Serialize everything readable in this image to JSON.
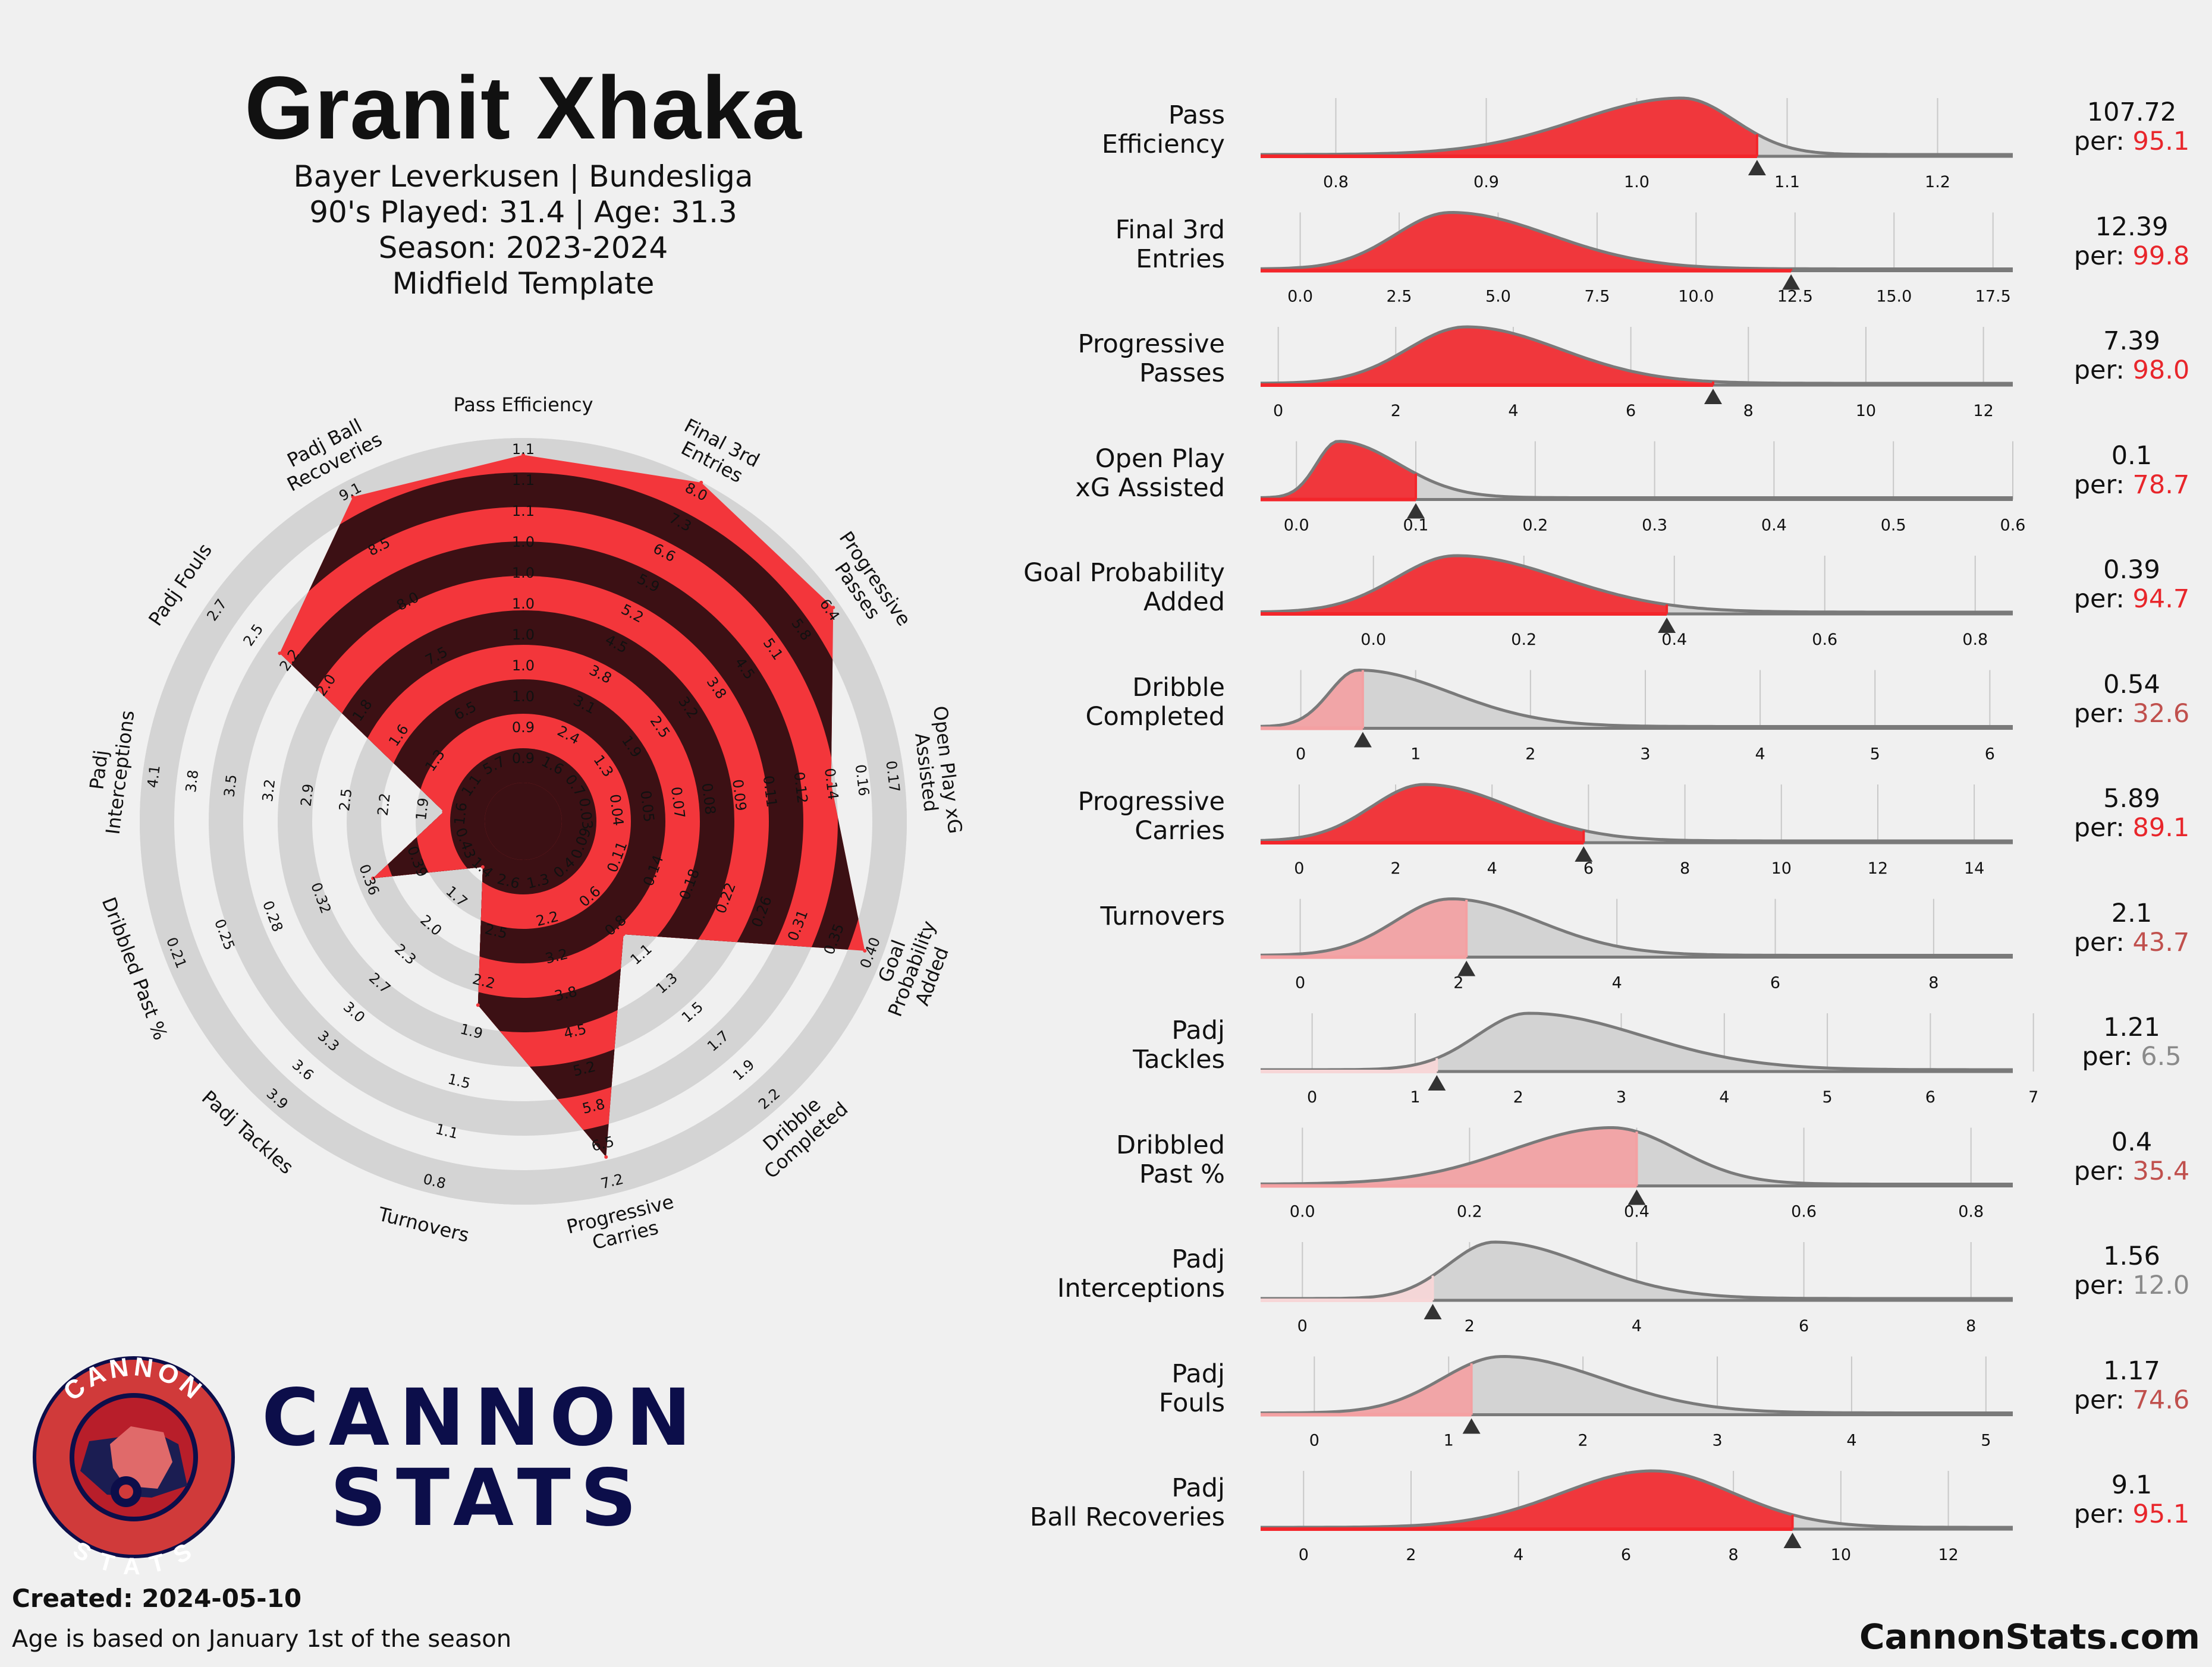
{
  "header": {
    "player": "Granit Xhaka",
    "team_line": "Bayer Leverkusen | Bundesliga",
    "played_line": "90's Played: 31.4 | Age: 31.3",
    "season_line": "Season: 2023-2024",
    "template_line": "Midfield Template"
  },
  "logo": {
    "ring_top": "CANNON",
    "ring_bottom": "STATS",
    "word1": "CANNON",
    "word2": "STATS"
  },
  "footer": {
    "created": "Created: 2024-05-10",
    "note": "Age is based on January 1st of the season",
    "site": "CannonStats.com"
  },
  "colors": {
    "red": "#f3363b",
    "dark": "#3c1014",
    "ring": "#d4d4d4",
    "grey": "#7a7a7a",
    "navy": "#0c0e4a"
  },
  "chart_data": [
    {
      "type": "radar",
      "categories": [
        "Pass Efficiency",
        "Final 3rd Entries",
        "Progressive Passes",
        "Open Play xG Assisted",
        "Goal Probability Added",
        "Dribble Completed",
        "Progressive Carries",
        "Turnovers",
        "Padj Tackles",
        "Dribbled Past %",
        "Padj Interceptions",
        "Padj Fouls",
        "Padj Ball Recoveries"
      ],
      "labels": [
        "Pass Efficiency",
        "Final 3rd\nEntries",
        "Progressive\nPasses",
        "Open Play xG\nAssisted",
        "Goal\nProbability\nAdded",
        "Dribble\nCompleted",
        "Progressive\nCarries",
        "Turnovers",
        "Padj Tackles",
        "Dribbled Past %",
        "Padj\nInterceptions",
        "Padj Fouls",
        "Padj Ball\nRecoveries"
      ],
      "percentiles": [
        95.1,
        99.8,
        98.0,
        78.7,
        94.7,
        32.6,
        89.1,
        43.7,
        6.5,
        35.4,
        12.0,
        74.6,
        95.1
      ],
      "ring_ticks": [
        [
          "0.9",
          "0.9",
          "1.0",
          "1.0",
          "1.0",
          "1.0",
          "1.0",
          "1.0",
          "1.1",
          "1.1",
          "1.1"
        ],
        [
          "1.6",
          "2.4",
          "3.1",
          "3.8",
          "4.5",
          "5.2",
          "5.9",
          "6.6",
          "7.3",
          "8.0"
        ],
        [
          "0.7",
          "1.3",
          "1.9",
          "2.5",
          "3.2",
          "3.8",
          "4.5",
          "5.1",
          "5.8",
          "6.4"
        ],
        [
          "0.03",
          "0.04",
          "0.05",
          "0.07",
          "0.08",
          "0.09",
          "0.11",
          "0.12",
          "0.14",
          "0.16",
          "0.17"
        ],
        [
          "0.09",
          "0.11",
          "0.14",
          "0.18",
          "0.22",
          "0.26",
          "0.31",
          "0.35",
          "0.40"
        ],
        [
          "0.4",
          "0.6",
          "0.8",
          "1.1",
          "1.3",
          "1.5",
          "1.7",
          "1.9",
          "2.2"
        ],
        [
          "1.3",
          "2.2",
          "3.2",
          "3.8",
          "4.5",
          "5.2",
          "5.8",
          "6.5",
          "7.2"
        ],
        [
          "2.6",
          "2.5",
          "2.2",
          "1.9",
          "1.5",
          "1.1",
          "0.8"
        ],
        [
          "1.4",
          "1.7",
          "2.0",
          "2.3",
          "2.7",
          "3.0",
          "3.3",
          "3.6",
          "3.9"
        ],
        [
          "0.43",
          "0.39",
          "0.36",
          "0.32",
          "0.28",
          "0.25",
          "0.21"
        ],
        [
          "1.6",
          "1.9",
          "2.2",
          "2.5",
          "2.9",
          "3.2",
          "3.5",
          "3.8",
          "4.1"
        ],
        [
          "1.1",
          "1.3",
          "1.6",
          "1.8",
          "2.0",
          "2.2",
          "2.5",
          "2.7"
        ],
        [
          "5.7",
          "6.5",
          "7.5",
          "8.0",
          "8.5",
          "9.1"
        ]
      ]
    },
    {
      "type": "density",
      "metrics": [
        {
          "label": "Pass\nEfficiency",
          "value": "107.72",
          "pct": "95.1",
          "xmin": 0.75,
          "xmax": 1.25,
          "ticks": [
            0.8,
            0.9,
            1.0,
            1.1,
            1.2
          ],
          "ticklabels": [
            "0.8",
            "0.9",
            "1.0",
            "1.1",
            "1.2"
          ],
          "marker": 1.08,
          "peak": 1.03,
          "sdl": 0.07,
          "sdr": 0.035
        },
        {
          "label": "Final 3rd\nEntries",
          "value": "12.39",
          "pct": "99.8",
          "xmin": -1,
          "xmax": 18,
          "ticks": [
            0,
            2.5,
            5,
            7.5,
            10,
            12.5,
            15,
            17.5
          ],
          "ticklabels": [
            "0.0",
            "2.5",
            "5.0",
            "7.5",
            "10.0",
            "12.5",
            "15.0",
            "17.5"
          ],
          "marker": 12.4,
          "peak": 3.8,
          "sdl": 1.4,
          "sdr": 2.5
        },
        {
          "label": "Progressive\nPasses",
          "value": "7.39",
          "pct": "98.0",
          "xmin": -0.3,
          "xmax": 12.5,
          "ticks": [
            0,
            2,
            4,
            6,
            8,
            10,
            12
          ],
          "ticklabels": [
            "0",
            "2",
            "4",
            "6",
            "8",
            "10",
            "12"
          ],
          "marker": 7.4,
          "peak": 3.2,
          "sdl": 1.0,
          "sdr": 1.6
        },
        {
          "label": "Open Play\nxG Assisted",
          "value": "0.1",
          "pct": "78.7",
          "xmin": -0.03,
          "xmax": 0.6,
          "ticks": [
            0,
            0.1,
            0.2,
            0.3,
            0.4,
            0.5,
            0.6
          ],
          "ticklabels": [
            "0.0",
            "0.1",
            "0.2",
            "0.3",
            "0.4",
            "0.5",
            "0.6"
          ],
          "marker": 0.1,
          "peak": 0.035,
          "sdl": 0.018,
          "sdr": 0.05
        },
        {
          "label": "Goal Probability\nAdded",
          "value": "0.39",
          "pct": "94.7",
          "xmin": -0.15,
          "xmax": 0.85,
          "ticks": [
            0,
            0.2,
            0.4,
            0.6,
            0.8
          ],
          "ticklabels": [
            "0.0",
            "0.2",
            "0.4",
            "0.6",
            "0.8"
          ],
          "marker": 0.39,
          "peak": 0.11,
          "sdl": 0.08,
          "sdr": 0.14
        },
        {
          "label": "Dribble\nCompleted",
          "value": "0.54",
          "pct": "32.6",
          "xmin": -0.35,
          "xmax": 6.2,
          "ticks": [
            0,
            1,
            2,
            3,
            4,
            5,
            6
          ],
          "ticklabels": [
            "0",
            "1",
            "2",
            "3",
            "4",
            "5",
            "6"
          ],
          "marker": 0.54,
          "peak": 0.5,
          "sdl": 0.25,
          "sdr": 0.8
        },
        {
          "label": "Progressive\nCarries",
          "value": "5.89",
          "pct": "89.1",
          "xmin": -0.8,
          "xmax": 14.8,
          "ticks": [
            0,
            2,
            4,
            6,
            8,
            10,
            12,
            14
          ],
          "ticklabels": [
            "0",
            "2",
            "4",
            "6",
            "8",
            "10",
            "12",
            "14"
          ],
          "marker": 5.9,
          "peak": 2.6,
          "sdl": 1.1,
          "sdr": 1.8
        },
        {
          "label": "Turnovers",
          "value": "2.1",
          "pct": "43.7",
          "xmin": -0.5,
          "xmax": 9.0,
          "ticks": [
            0,
            2,
            4,
            6,
            8
          ],
          "ticklabels": [
            "0",
            "2",
            "4",
            "6",
            "8"
          ],
          "marker": 2.1,
          "peak": 1.9,
          "sdl": 0.7,
          "sdr": 1.1
        },
        {
          "label": "Padj\nTackles",
          "value": "1.21",
          "pct": "6.5",
          "xmin": -0.5,
          "xmax": 6.8,
          "ticks": [
            0,
            1,
            2,
            3,
            4,
            5,
            6,
            7
          ],
          "ticklabels": [
            "0",
            "1",
            "2",
            "3",
            "4",
            "5",
            "6",
            "7"
          ],
          "marker": 1.21,
          "peak": 2.1,
          "sdl": 0.5,
          "sdr": 1.1
        },
        {
          "label": "Dribbled\nPast %",
          "value": "0.4",
          "pct": "35.4",
          "xmin": -0.05,
          "xmax": 0.85,
          "ticks": [
            0,
            0.2,
            0.4,
            0.6,
            0.8
          ],
          "ticklabels": [
            "0.0",
            "0.2",
            "0.4",
            "0.6",
            "0.8"
          ],
          "marker": 0.4,
          "peak": 0.37,
          "sdl": 0.12,
          "sdr": 0.08
        },
        {
          "label": "Padj\nInterceptions",
          "value": "1.56",
          "pct": "12.0",
          "xmin": -0.5,
          "xmax": 8.5,
          "ticks": [
            0,
            2,
            4,
            6,
            8
          ],
          "ticklabels": [
            "0",
            "2",
            "4",
            "6",
            "8"
          ],
          "marker": 1.56,
          "peak": 2.3,
          "sdl": 0.55,
          "sdr": 1.1
        },
        {
          "label": "Padj\nFouls",
          "value": "1.17",
          "pct": "74.6",
          "xmin": -0.4,
          "xmax": 5.2,
          "ticks": [
            0,
            1,
            2,
            3,
            4,
            5
          ],
          "ticklabels": [
            "0",
            "1",
            "2",
            "3",
            "4",
            "5"
          ],
          "marker": 1.17,
          "peak": 1.4,
          "sdl": 0.45,
          "sdr": 0.75
        },
        {
          "label": "Padj\nBall Recoveries",
          "value": "9.1",
          "pct": "95.1",
          "xmin": -0.8,
          "xmax": 13.2,
          "ticks": [
            0,
            2,
            4,
            6,
            8,
            10,
            12
          ],
          "ticklabels": [
            "0",
            "2",
            "4",
            "6",
            "8",
            "10",
            "12"
          ],
          "marker": 9.1,
          "peak": 6.5,
          "sdl": 1.7,
          "sdr": 1.5
        }
      ]
    }
  ]
}
